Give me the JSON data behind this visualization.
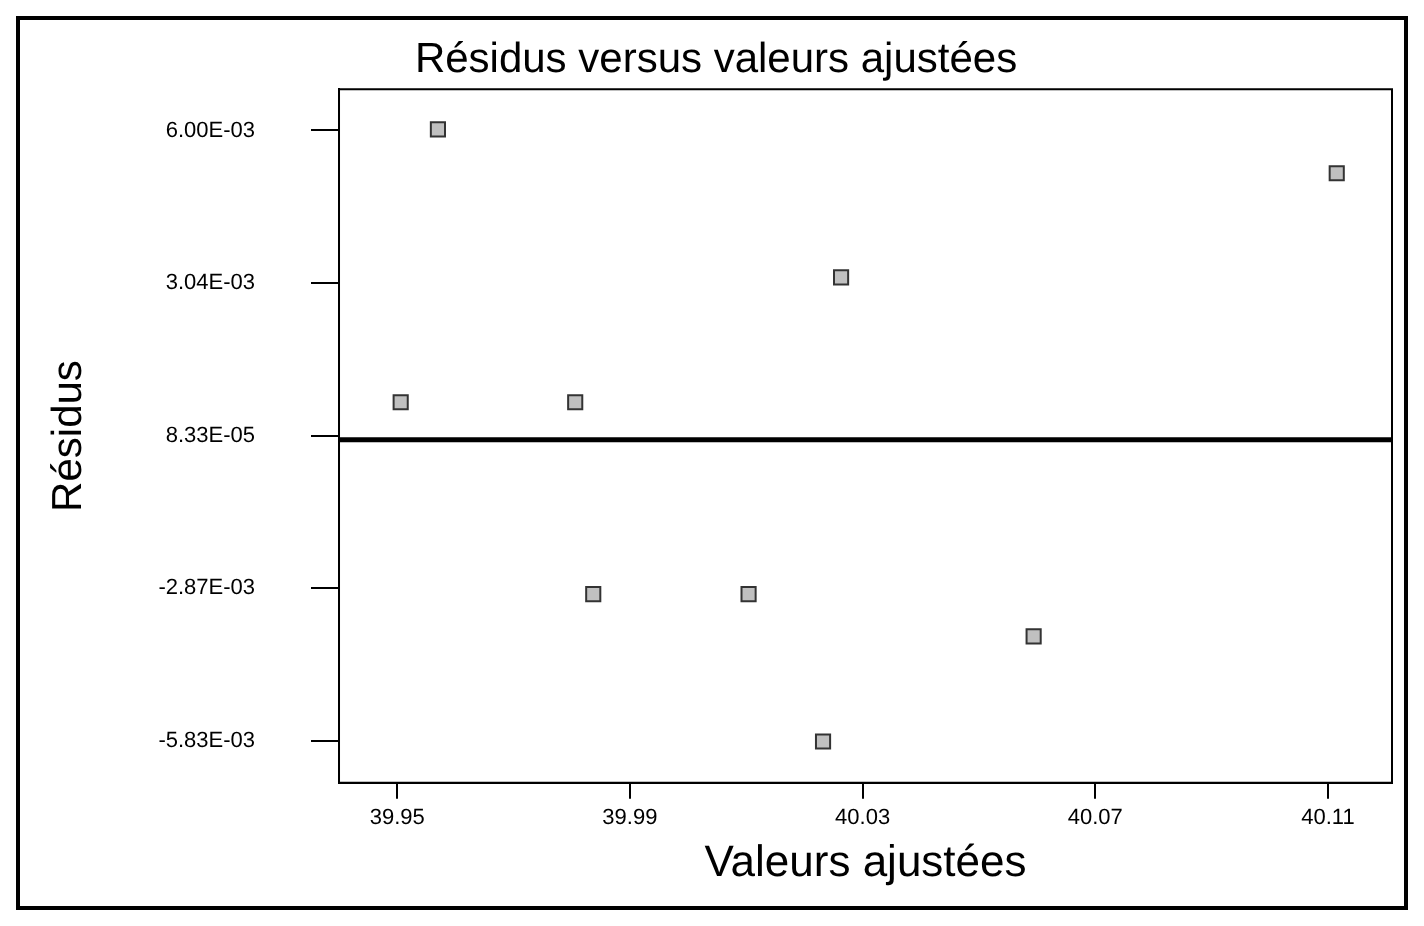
{
  "chart_data": {
    "type": "scatter",
    "title": "Résidus versus valeurs ajustées",
    "xlabel": "Valeurs ajustées",
    "ylabel": "Résidus",
    "x": [
      39.9506,
      39.957,
      39.9806,
      39.9837,
      40.0104,
      40.0232,
      40.0263,
      40.0594,
      40.1115
    ],
    "series": [
      {
        "color": "#c0c0c0",
        "values": [
          0.00073,
          0.00602,
          0.00073,
          -0.00299,
          -0.00299,
          -0.00585,
          0.00315,
          -0.00381,
          0.00517
        ]
      }
    ],
    "xlim": [
      39.94,
      40.121
    ],
    "xticks": [
      39.95,
      39.99,
      40.03,
      40.07,
      40.11
    ],
    "ylim": [
      -0.00665,
      0.0068
    ],
    "yticks": [
      {
        "value": 0.006,
        "label": "6.00E-03"
      },
      {
        "value": 0.00304,
        "label": "3.04E-03"
      },
      {
        "value": 8.33e-05,
        "label": "8.33E-05"
      },
      {
        "value": -0.00287,
        "label": "-2.87E-03"
      },
      {
        "value": -0.00583,
        "label": "-5.83E-03"
      }
    ],
    "ref_lines": [
      {
        "axis": "y",
        "value": 0,
        "color": "#000000"
      }
    ],
    "marker": "square",
    "legend": false
  }
}
